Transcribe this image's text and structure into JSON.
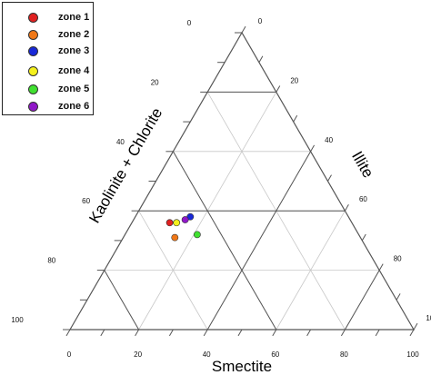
{
  "chart_data": {
    "type": "scatter",
    "subtype": "ternary",
    "axes": {
      "bottom": {
        "label": "Smectite",
        "ticks": [
          "0",
          "20",
          "40",
          "60",
          "80",
          "100"
        ]
      },
      "left": {
        "label": "Kaolinite + Chlorite",
        "ticks": [
          "100",
          "80",
          "60",
          "40",
          "20",
          "0"
        ]
      },
      "right": {
        "label": "Illite",
        "ticks": [
          "100",
          "80",
          "60",
          "40",
          "20",
          "0"
        ]
      }
    },
    "grid": true,
    "legend_position": "top-left",
    "series": [
      {
        "name": "zone 1",
        "color": "#e02020",
        "points": [
          {
            "smectite": 11,
            "kaolinite_chlorite": 36,
            "illite": 53
          }
        ]
      },
      {
        "name": "zone 2",
        "color": "#f07818",
        "points": [
          {
            "smectite": 15,
            "kaolinite_chlorite": 31,
            "illite": 54
          }
        ]
      },
      {
        "name": "zone 3",
        "color": "#1828d8",
        "points": [
          {
            "smectite": 16,
            "kaolinite_chlorite": 38,
            "illite": 46
          }
        ]
      },
      {
        "name": "zone 4",
        "color": "#f4f01c",
        "points": [
          {
            "smectite": 13,
            "kaolinite_chlorite": 36,
            "illite": 51
          }
        ]
      },
      {
        "name": "zone 5",
        "color": "#40e030",
        "points": [
          {
            "smectite": 21,
            "kaolinite_chlorite": 32,
            "illite": 47
          }
        ]
      },
      {
        "name": "zone 6",
        "color": "#9018c8",
        "points": [
          {
            "smectite": 15,
            "kaolinite_chlorite": 37,
            "illite": 48
          }
        ]
      }
    ]
  }
}
